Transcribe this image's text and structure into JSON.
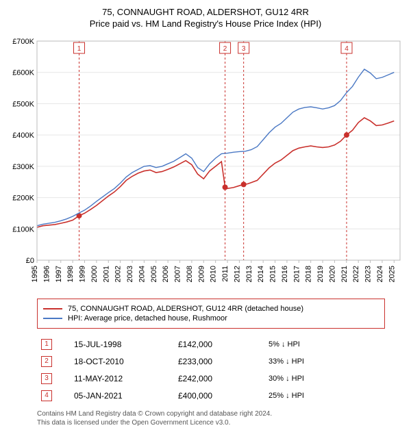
{
  "title": {
    "line1": "75, CONNAUGHT ROAD, ALDERSHOT, GU12 4RR",
    "line2": "Price paid vs. HM Land Registry's House Price Index (HPI)"
  },
  "chart": {
    "type": "line",
    "background_color": "#ffffff",
    "plot_border_color": "#bbbbbb",
    "grid_color": "#e6e6e6",
    "text_color": "#000000",
    "marker_line_color": "#c9302c",
    "marker_box_border": "#c9302c",
    "marker_box_fill": "#ffffff",
    "axis_font_size": 11,
    "x": {
      "min": 1995,
      "max": 2025.5,
      "tick_years": [
        1995,
        1996,
        1997,
        1998,
        1999,
        2000,
        2001,
        2002,
        2003,
        2004,
        2005,
        2006,
        2007,
        2008,
        2009,
        2010,
        2011,
        2012,
        2013,
        2014,
        2015,
        2016,
        2017,
        2018,
        2019,
        2020,
        2021,
        2022,
        2023,
        2024,
        2025
      ]
    },
    "y": {
      "min": 0,
      "max": 700000,
      "ticks": [
        0,
        100000,
        200000,
        300000,
        400000,
        500000,
        600000,
        700000
      ],
      "label_prefix": "£",
      "label_suffix": "K"
    },
    "series": [
      {
        "name": "75, CONNAUGHT ROAD, ALDERSHOT, GU12 4RR (detached house)",
        "color": "#c9302c",
        "line_width": 1.6,
        "data": [
          [
            1995.0,
            105000
          ],
          [
            1995.5,
            110000
          ],
          [
            1996.0,
            112000
          ],
          [
            1996.5,
            114000
          ],
          [
            1997.0,
            118000
          ],
          [
            1997.5,
            122000
          ],
          [
            1998.0,
            128000
          ],
          [
            1998.54,
            142000
          ],
          [
            1999.0,
            150000
          ],
          [
            1999.5,
            162000
          ],
          [
            2000.0,
            175000
          ],
          [
            2000.5,
            190000
          ],
          [
            2001.0,
            205000
          ],
          [
            2001.5,
            218000
          ],
          [
            2002.0,
            235000
          ],
          [
            2002.5,
            255000
          ],
          [
            2003.0,
            268000
          ],
          [
            2003.5,
            278000
          ],
          [
            2004.0,
            285000
          ],
          [
            2004.5,
            288000
          ],
          [
            2005.0,
            280000
          ],
          [
            2005.5,
            283000
          ],
          [
            2006.0,
            290000
          ],
          [
            2006.5,
            298000
          ],
          [
            2007.0,
            308000
          ],
          [
            2007.5,
            318000
          ],
          [
            2008.0,
            305000
          ],
          [
            2008.5,
            275000
          ],
          [
            2009.0,
            260000
          ],
          [
            2009.5,
            285000
          ],
          [
            2010.0,
            300000
          ],
          [
            2010.5,
            315000
          ],
          [
            2010.8,
            233000
          ],
          [
            2011.0,
            229000
          ],
          [
            2011.5,
            232000
          ],
          [
            2012.0,
            238000
          ],
          [
            2012.36,
            242000
          ],
          [
            2012.7,
            244000
          ],
          [
            2013.0,
            248000
          ],
          [
            2013.5,
            255000
          ],
          [
            2014.0,
            275000
          ],
          [
            2014.5,
            295000
          ],
          [
            2015.0,
            310000
          ],
          [
            2015.5,
            320000
          ],
          [
            2016.0,
            335000
          ],
          [
            2016.5,
            350000
          ],
          [
            2017.0,
            358000
          ],
          [
            2017.5,
            362000
          ],
          [
            2018.0,
            365000
          ],
          [
            2018.5,
            362000
          ],
          [
            2019.0,
            360000
          ],
          [
            2019.5,
            362000
          ],
          [
            2020.0,
            368000
          ],
          [
            2020.5,
            380000
          ],
          [
            2021.01,
            400000
          ],
          [
            2021.5,
            415000
          ],
          [
            2022.0,
            440000
          ],
          [
            2022.5,
            455000
          ],
          [
            2023.0,
            445000
          ],
          [
            2023.5,
            430000
          ],
          [
            2024.0,
            432000
          ],
          [
            2024.5,
            438000
          ],
          [
            2025.0,
            445000
          ]
        ]
      },
      {
        "name": "HPI: Average price, detached house, Rushmoor",
        "color": "#4a78c4",
        "line_width": 1.4,
        "data": [
          [
            1995.0,
            110000
          ],
          [
            1995.5,
            115000
          ],
          [
            1996.0,
            118000
          ],
          [
            1996.5,
            121000
          ],
          [
            1997.0,
            126000
          ],
          [
            1997.5,
            132000
          ],
          [
            1998.0,
            140000
          ],
          [
            1998.5,
            150000
          ],
          [
            1999.0,
            160000
          ],
          [
            1999.5,
            173000
          ],
          [
            2000.0,
            188000
          ],
          [
            2000.5,
            202000
          ],
          [
            2001.0,
            216000
          ],
          [
            2001.5,
            229000
          ],
          [
            2002.0,
            246000
          ],
          [
            2002.5,
            266000
          ],
          [
            2003.0,
            280000
          ],
          [
            2003.5,
            290000
          ],
          [
            2004.0,
            300000
          ],
          [
            2004.5,
            302000
          ],
          [
            2005.0,
            296000
          ],
          [
            2005.5,
            300000
          ],
          [
            2006.0,
            308000
          ],
          [
            2006.5,
            316000
          ],
          [
            2007.0,
            328000
          ],
          [
            2007.5,
            340000
          ],
          [
            2008.0,
            326000
          ],
          [
            2008.5,
            296000
          ],
          [
            2009.0,
            283000
          ],
          [
            2009.5,
            308000
          ],
          [
            2010.0,
            326000
          ],
          [
            2010.5,
            340000
          ],
          [
            2011.0,
            342000
          ],
          [
            2011.5,
            345000
          ],
          [
            2012.0,
            347000
          ],
          [
            2012.5,
            348000
          ],
          [
            2013.0,
            353000
          ],
          [
            2013.5,
            363000
          ],
          [
            2014.0,
            385000
          ],
          [
            2014.5,
            407000
          ],
          [
            2015.0,
            425000
          ],
          [
            2015.5,
            437000
          ],
          [
            2016.0,
            455000
          ],
          [
            2016.5,
            473000
          ],
          [
            2017.0,
            483000
          ],
          [
            2017.5,
            488000
          ],
          [
            2018.0,
            490000
          ],
          [
            2018.5,
            487000
          ],
          [
            2019.0,
            483000
          ],
          [
            2019.5,
            487000
          ],
          [
            2020.0,
            494000
          ],
          [
            2020.5,
            510000
          ],
          [
            2021.0,
            535000
          ],
          [
            2021.5,
            555000
          ],
          [
            2022.0,
            585000
          ],
          [
            2022.5,
            610000
          ],
          [
            2023.0,
            598000
          ],
          [
            2023.5,
            580000
          ],
          [
            2024.0,
            584000
          ],
          [
            2024.5,
            592000
          ],
          [
            2025.0,
            600000
          ]
        ]
      }
    ],
    "markers": [
      {
        "n": "1",
        "year": 1998.54,
        "price": 142000
      },
      {
        "n": "2",
        "year": 2010.8,
        "price": 233000
      },
      {
        "n": "3",
        "year": 2012.36,
        "price": 242000
      },
      {
        "n": "4",
        "year": 2021.01,
        "price": 400000
      }
    ]
  },
  "events": {
    "columns": [
      "n",
      "date",
      "price",
      "delta"
    ],
    "rows": [
      {
        "n": "1",
        "date": "15-JUL-1998",
        "price": "£142,000",
        "delta": "5% ↓ HPI"
      },
      {
        "n": "2",
        "date": "18-OCT-2010",
        "price": "£233,000",
        "delta": "33% ↓ HPI"
      },
      {
        "n": "3",
        "date": "11-MAY-2012",
        "price": "£242,000",
        "delta": "30% ↓ HPI"
      },
      {
        "n": "4",
        "date": "05-JAN-2021",
        "price": "£400,000",
        "delta": "25% ↓ HPI"
      }
    ]
  },
  "footer": {
    "line1": "Contains HM Land Registry data © Crown copyright and database right 2024.",
    "line2": "This data is licensed under the Open Government Licence v3.0."
  }
}
